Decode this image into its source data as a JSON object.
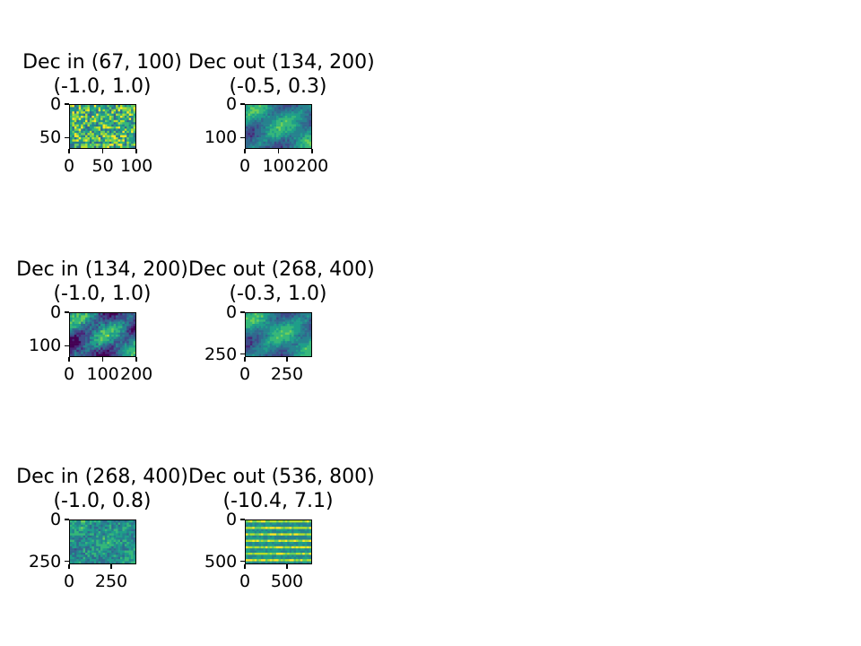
{
  "chart_data": [
    {
      "type": "heatmap",
      "title": "Dec in (67, 100)",
      "subtitle": "(-1.0, 1.0)",
      "shape": [
        67,
        100
      ],
      "value_range": [
        -1.0,
        1.0
      ],
      "xticks": [
        0,
        50,
        100
      ],
      "xtick_labels": [
        "0",
        "50",
        "100"
      ],
      "yticks": [
        0,
        50
      ],
      "ytick_labels": [
        "0",
        "50"
      ],
      "colormap": "viridis",
      "texture": "noisy"
    },
    {
      "type": "heatmap",
      "title": "Dec out (134, 200)",
      "subtitle": "(-0.5, 0.3)",
      "shape": [
        134,
        200
      ],
      "value_range": [
        -0.5,
        0.3
      ],
      "xticks": [
        0,
        100,
        200
      ],
      "xtick_labels": [
        "0",
        "100",
        "200"
      ],
      "yticks": [
        0,
        100
      ],
      "ytick_labels": [
        "0",
        "100"
      ],
      "colormap": "viridis",
      "texture": "leaf"
    },
    {
      "type": "heatmap",
      "title": "Dec in (134, 200)",
      "subtitle": "(-1.0, 1.0)",
      "shape": [
        134,
        200
      ],
      "value_range": [
        -1.0,
        1.0
      ],
      "xticks": [
        0,
        100,
        200
      ],
      "xtick_labels": [
        "0",
        "100",
        "200"
      ],
      "yticks": [
        0,
        100
      ],
      "ytick_labels": [
        "0",
        "100"
      ],
      "colormap": "viridis",
      "texture": "leaf-dark"
    },
    {
      "type": "heatmap",
      "title": "Dec out (268, 400)",
      "subtitle": "(-0.3, 1.0)",
      "shape": [
        268,
        400
      ],
      "value_range": [
        -0.3,
        1.0
      ],
      "xticks": [
        0,
        250
      ],
      "xtick_labels": [
        "0",
        "250"
      ],
      "yticks": [
        0,
        250
      ],
      "ytick_labels": [
        "0",
        "250"
      ],
      "colormap": "viridis",
      "texture": "leaf"
    },
    {
      "type": "heatmap",
      "title": "Dec in (268, 400)",
      "subtitle": "(-1.0, 0.8)",
      "shape": [
        268,
        400
      ],
      "value_range": [
        -1.0,
        0.8
      ],
      "xticks": [
        0,
        250
      ],
      "xtick_labels": [
        "0",
        "250"
      ],
      "yticks": [
        0,
        250
      ],
      "ytick_labels": [
        "0",
        "250"
      ],
      "colormap": "viridis",
      "texture": "noisy-soft"
    },
    {
      "type": "heatmap",
      "title": "Dec out (536, 800)",
      "subtitle": "(-10.4, 7.1)",
      "shape": [
        536,
        800
      ],
      "value_range": [
        -10.4,
        7.1
      ],
      "xticks": [
        0,
        500
      ],
      "xtick_labels": [
        "0",
        "500"
      ],
      "yticks": [
        0,
        500
      ],
      "ytick_labels": [
        "0",
        "500"
      ],
      "colormap": "viridis",
      "texture": "striped"
    }
  ]
}
